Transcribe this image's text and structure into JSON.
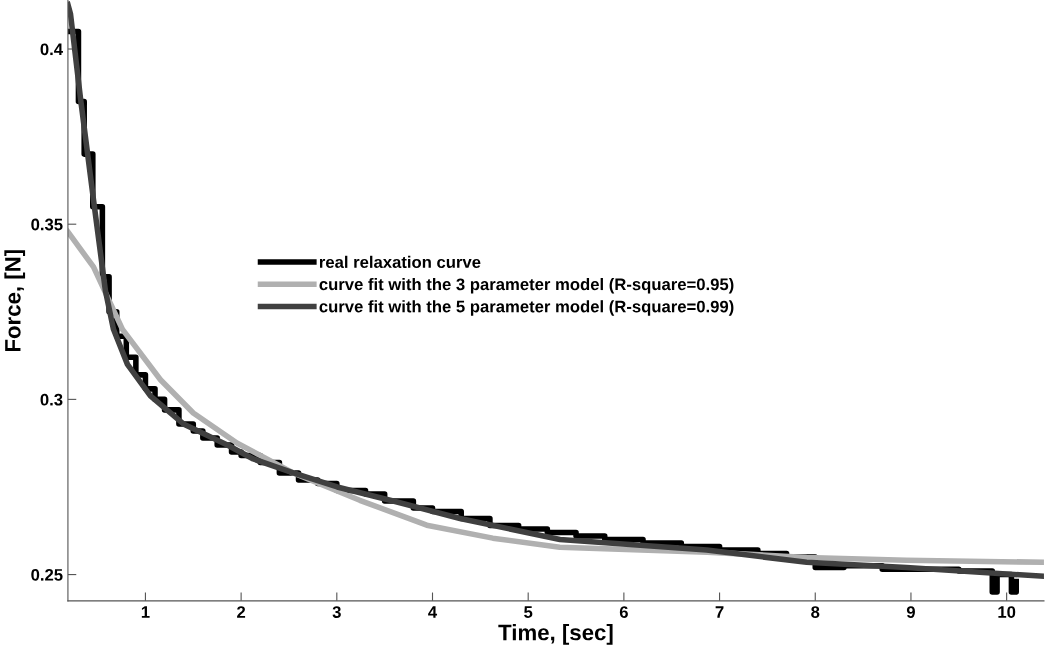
{
  "chart_data": {
    "type": "line",
    "xlabel": "Time, [sec]",
    "ylabel": "Force, [N]",
    "xlim": [
      0.19,
      10.39
    ],
    "ylim": [
      0.2425,
      0.4138
    ],
    "xticks": [
      1,
      2,
      3,
      4,
      5,
      6,
      7,
      8,
      9,
      10
    ],
    "yticks": [
      0.25,
      0.3,
      0.35,
      0.4
    ],
    "grid": false,
    "legend": "center",
    "marker": "none",
    "line_style": "solid",
    "series": [
      {
        "name": "real relaxation curve",
        "type": "step",
        "color": "#000000",
        "x": [
          0.21,
          0.3,
          0.36,
          0.45,
          0.55,
          0.62,
          0.7,
          0.8,
          0.9,
          1.0,
          1.1,
          1.2,
          1.35,
          1.5,
          1.6,
          1.75,
          1.9,
          2.0,
          2.2,
          2.4,
          2.6,
          2.8,
          3.0,
          3.3,
          3.5,
          3.8,
          4.0,
          4.3,
          4.6,
          4.9,
          5.2,
          5.5,
          5.8,
          6.2,
          6.6,
          7.0,
          7.4,
          7.7,
          8.0,
          8.3,
          8.7,
          9.0,
          9.5,
          9.85,
          9.9,
          10.05,
          10.1
        ],
        "values": [
          0.405,
          0.385,
          0.37,
          0.355,
          0.335,
          0.325,
          0.318,
          0.312,
          0.307,
          0.303,
          0.3,
          0.297,
          0.293,
          0.291,
          0.289,
          0.287,
          0.285,
          0.284,
          0.282,
          0.279,
          0.277,
          0.276,
          0.274,
          0.273,
          0.271,
          0.269,
          0.268,
          0.266,
          0.264,
          0.263,
          0.262,
          0.261,
          0.26,
          0.259,
          0.258,
          0.257,
          0.256,
          0.255,
          0.252,
          0.2525,
          0.2515,
          0.2515,
          0.251,
          0.245,
          0.25,
          0.245,
          0.248
        ]
      },
      {
        "name": "curve fit with the 3 parameter model (R-square=0.95)",
        "color": "#b0b0b0",
        "x": [
          0.19,
          0.457,
          0.76,
          1.157,
          1.5,
          1.96,
          2.545,
          3.24,
          3.94,
          4.63,
          5.33,
          6.87,
          7.91,
          8.95,
          10.39
        ],
        "values": [
          0.3478,
          0.3378,
          0.32,
          0.3056,
          0.2961,
          0.2875,
          0.279,
          0.2712,
          0.2641,
          0.2604,
          0.2578,
          0.2564,
          0.2549,
          0.2541,
          0.2535
        ]
      },
      {
        "name": "curve fit with the 5 parameter model (R-square=0.99)",
        "color": "#404040",
        "x": [
          0.19,
          0.217,
          0.321,
          0.457,
          0.582,
          0.666,
          0.812,
          1.052,
          1.397,
          1.856,
          2.127,
          2.545,
          3.004,
          3.589,
          4.288,
          5.332,
          6.866,
          7.91,
          8.954,
          10.39
        ],
        "values": [
          0.4127,
          0.41,
          0.386,
          0.357,
          0.331,
          0.32,
          0.31,
          0.301,
          0.293,
          0.287,
          0.283,
          0.279,
          0.275,
          0.271,
          0.266,
          0.26,
          0.257,
          0.2535,
          0.252,
          0.2495
        ]
      }
    ]
  }
}
